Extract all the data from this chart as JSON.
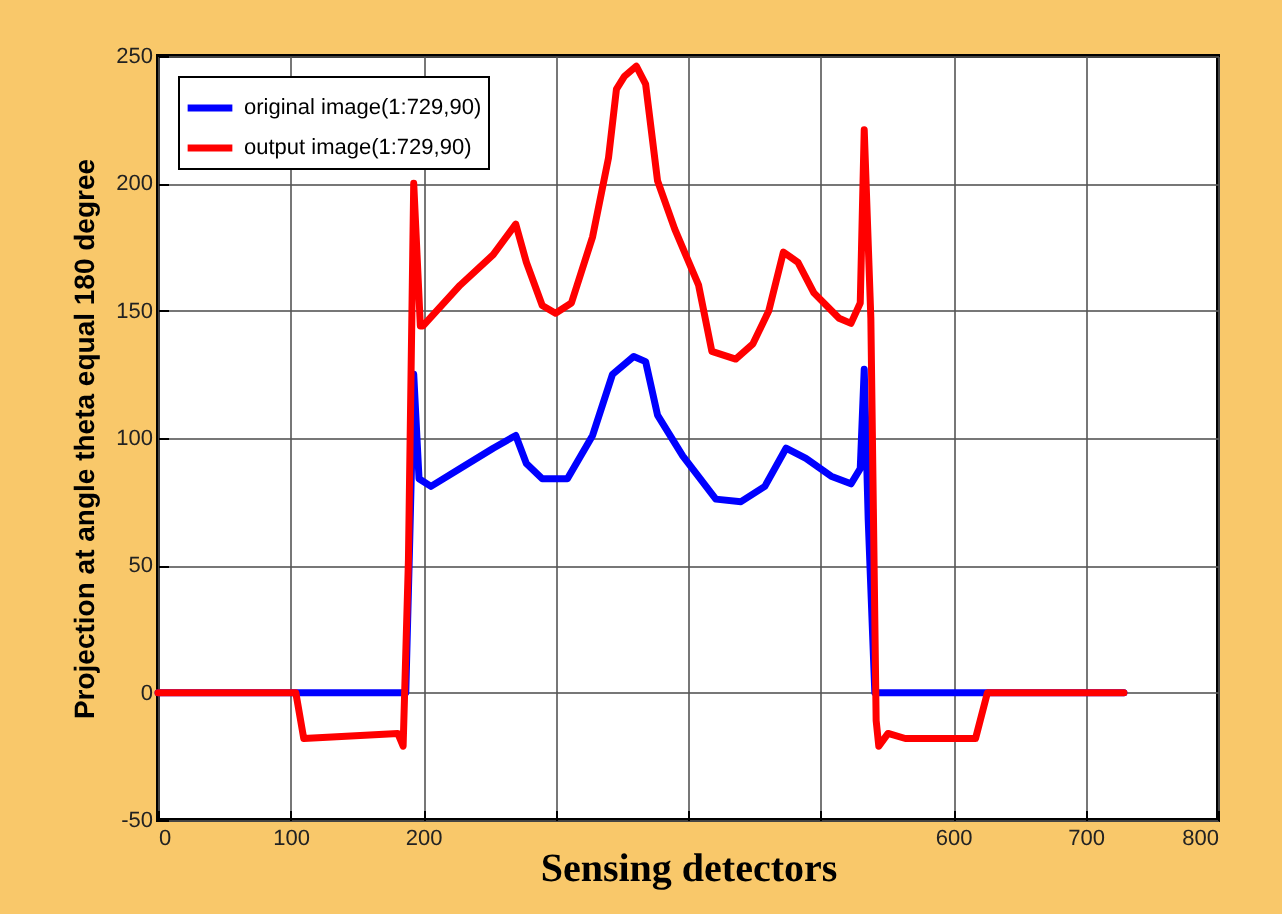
{
  "chart_data": {
    "type": "line",
    "xlabel": "Sensing detectors",
    "ylabel": "Projection at angle theta equal 180 degree",
    "xlim": [
      0,
      800
    ],
    "ylim": [
      -50,
      250
    ],
    "xticks": [
      0,
      100,
      200,
      {
        "value": 300,
        "label": null
      },
      {
        "value": 400,
        "label": null
      },
      {
        "value": 500,
        "label": null
      },
      600,
      700,
      800
    ],
    "yticks": [
      -50,
      0,
      50,
      100,
      150,
      200,
      250
    ],
    "grid": true,
    "legend": "top left",
    "line_style": "solid",
    "marker": "none",
    "series": [
      {
        "name": "original image(1:729,90)",
        "color": "#0000ff",
        "x": [
          0,
          100,
          187,
          190,
          193,
          197,
          206,
          228,
          253,
          270,
          278,
          290,
          309,
          328,
          343,
          359,
          368,
          377,
          396,
          421,
          440,
          458,
          474,
          489,
          508,
          523,
          530,
          533,
          536,
          541,
          729
        ],
        "values": [
          0,
          0,
          0,
          60,
          125,
          84,
          81,
          88,
          96,
          101,
          90,
          84,
          84,
          101,
          125,
          132,
          130,
          109,
          93,
          76,
          75,
          81,
          96,
          92,
          85,
          82,
          88,
          127,
          68,
          0,
          0
        ]
      },
      {
        "name": "output image(1:729,90)",
        "color": "#ff0000",
        "x": [
          0,
          100,
          104,
          110,
          181,
          185,
          189,
          193,
          198,
          200,
          228,
          253,
          270,
          278,
          290,
          300,
          312,
          328,
          340,
          346,
          352,
          361,
          368,
          377,
          390,
          408,
          418,
          436,
          449,
          461,
          472,
          483,
          495,
          514,
          523,
          530,
          533,
          538,
          542,
          544,
          551,
          564,
          617,
          626,
          729
        ],
        "values": [
          0,
          0,
          0,
          -18,
          -16,
          -21,
          52,
          200,
          144,
          144,
          160,
          172,
          184,
          169,
          152,
          149,
          153,
          179,
          210,
          237,
          242,
          246,
          239,
          201,
          182,
          160,
          134,
          131,
          137,
          150,
          173,
          169,
          157,
          147,
          145,
          153,
          221,
          147,
          -11,
          -21,
          -16,
          -18,
          -18,
          0,
          0
        ]
      }
    ]
  }
}
